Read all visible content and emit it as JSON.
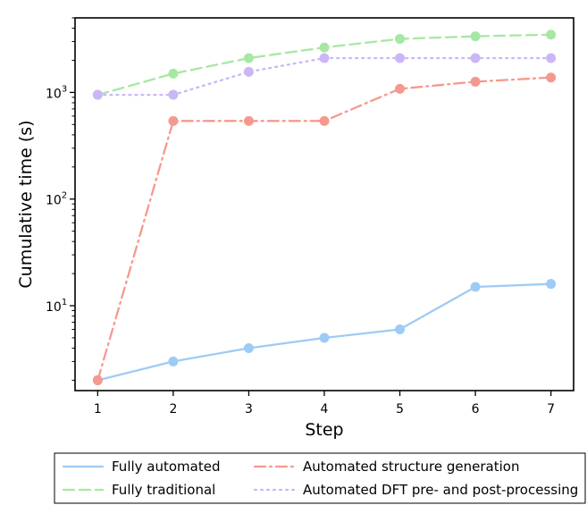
{
  "chart_data": {
    "type": "line",
    "xlabel": "Step",
    "ylabel": "Cumulative time (s)",
    "yscale": "log",
    "xlim": [
      0.7,
      7.3
    ],
    "ylim": [
      1.6,
      5000
    ],
    "x": [
      1,
      2,
      3,
      4,
      5,
      6,
      7
    ],
    "x_ticks": [
      {
        "value": 1,
        "label": "1"
      },
      {
        "value": 2,
        "label": "2"
      },
      {
        "value": 3,
        "label": "3"
      },
      {
        "value": 4,
        "label": "4"
      },
      {
        "value": 5,
        "label": "5"
      },
      {
        "value": 6,
        "label": "6"
      },
      {
        "value": 7,
        "label": "7"
      }
    ],
    "y_ticks": [
      {
        "value": 10,
        "base": "10",
        "exp": "1"
      },
      {
        "value": 100,
        "base": "10",
        "exp": "2"
      },
      {
        "value": 1000,
        "base": "10",
        "exp": "3"
      }
    ],
    "grid": false,
    "legend_position": "below",
    "series": [
      {
        "name": "Fully automated",
        "color": "#9ecbf5",
        "dash": "solid",
        "values": [
          2,
          3,
          4,
          5,
          6,
          15,
          16
        ]
      },
      {
        "name": "Automated structure generation",
        "color": "#f5998f",
        "dash": "dashdot",
        "values": [
          2,
          540,
          540,
          540,
          1080,
          1260,
          1380
        ]
      },
      {
        "name": "Fully traditional",
        "color": "#a6e8a3",
        "dash": "dashed",
        "values": [
          950,
          1500,
          2100,
          2640,
          3180,
          3360,
          3480
        ]
      },
      {
        "name": "Automated DFT pre- and post-processing",
        "color": "#cbb6f7",
        "dash": "dotted",
        "values": [
          950,
          950,
          1560,
          2100,
          2100,
          2100,
          2100
        ]
      }
    ]
  }
}
